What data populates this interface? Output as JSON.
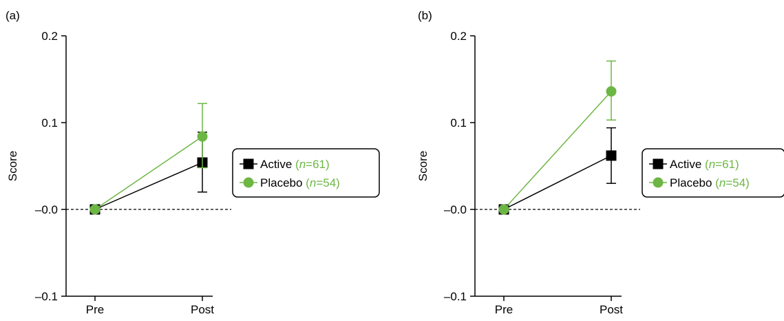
{
  "colors": {
    "active": "#000000",
    "placebo": "#6cb644",
    "axis": "#000000",
    "legend_border": "#000000"
  },
  "chart_data": [
    {
      "type": "line",
      "panel_label": "(a)",
      "ylabel": "Score",
      "xlabel": "",
      "categories": [
        "Pre",
        "Post"
      ],
      "ylim": [
        -0.1,
        0.2
      ],
      "yticks": [
        -0.1,
        0.0,
        0.1,
        0.2
      ],
      "ytick_labels": [
        "–0.1",
        "–0.0",
        "0.1",
        "0.2"
      ],
      "reference_line": {
        "y": 0.0,
        "style": "dashed"
      },
      "grid": false,
      "legend_position": "right",
      "series": [
        {
          "name": "Active",
          "n_label": "(n=61)",
          "n": 61,
          "marker": "square",
          "color_key": "active",
          "values": [
            0.0,
            0.054
          ],
          "error_low": [
            null,
            0.02
          ],
          "error_high": [
            null,
            0.089
          ]
        },
        {
          "name": "Placebo",
          "n_label": "(n=54)",
          "n": 54,
          "marker": "circle",
          "color_key": "placebo",
          "values": [
            0.0,
            0.084
          ],
          "error_low": [
            null,
            0.048
          ],
          "error_high": [
            null,
            0.122
          ]
        }
      ]
    },
    {
      "type": "line",
      "panel_label": "(b)",
      "ylabel": "Score",
      "xlabel": "",
      "categories": [
        "Pre",
        "Post"
      ],
      "ylim": [
        -0.1,
        0.2
      ],
      "yticks": [
        -0.1,
        0.0,
        0.1,
        0.2
      ],
      "ytick_labels": [
        "–0.1",
        "–0.0",
        "0.1",
        "0.2"
      ],
      "reference_line": {
        "y": 0.0,
        "style": "dashed"
      },
      "grid": false,
      "legend_position": "right",
      "series": [
        {
          "name": "Active",
          "n_label": "(n=61)",
          "n": 61,
          "marker": "square",
          "color_key": "active",
          "values": [
            0.0,
            0.062
          ],
          "error_low": [
            null,
            0.03
          ],
          "error_high": [
            null,
            0.094
          ]
        },
        {
          "name": "Placebo",
          "n_label": "(n=54)",
          "n": 54,
          "marker": "circle",
          "color_key": "placebo",
          "values": [
            0.0,
            0.136
          ],
          "error_low": [
            null,
            0.103
          ],
          "error_high": [
            null,
            0.171
          ]
        }
      ]
    }
  ]
}
